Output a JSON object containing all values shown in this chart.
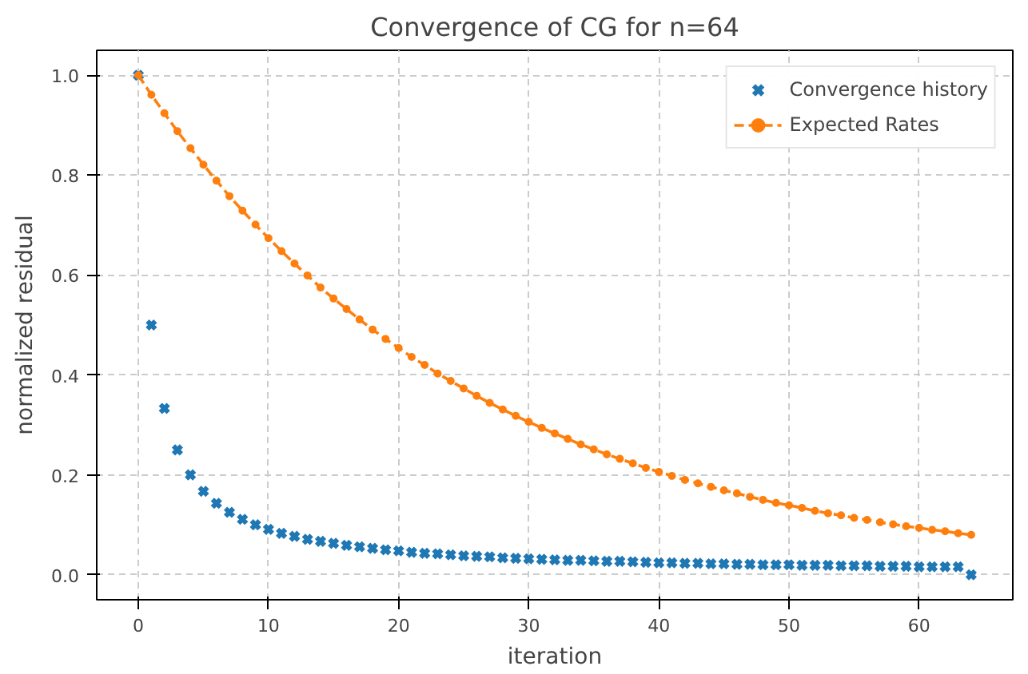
{
  "chart_data": {
    "type": "scatter",
    "title": "Convergence of CG for n=64",
    "xlabel": "iteration",
    "ylabel": "normalized residual",
    "x": [
      0,
      1,
      2,
      3,
      4,
      5,
      6,
      7,
      8,
      9,
      10,
      11,
      12,
      13,
      14,
      15,
      16,
      17,
      18,
      19,
      20,
      21,
      22,
      23,
      24,
      25,
      26,
      27,
      28,
      29,
      30,
      31,
      32,
      33,
      34,
      35,
      36,
      37,
      38,
      39,
      40,
      41,
      42,
      43,
      44,
      45,
      46,
      47,
      48,
      49,
      50,
      51,
      52,
      53,
      54,
      55,
      56,
      57,
      58,
      59,
      60,
      61,
      62,
      63,
      64
    ],
    "series": [
      {
        "name": "Convergence history",
        "marker": "cross",
        "color": "#1f77b4",
        "values": [
          1,
          0.5,
          0.333,
          0.25,
          0.2,
          0.167,
          0.143,
          0.125,
          0.111,
          0.1,
          0.091,
          0.083,
          0.077,
          0.071,
          0.067,
          0.063,
          0.059,
          0.056,
          0.053,
          0.05,
          0.048,
          0.045,
          0.043,
          0.042,
          0.04,
          0.038,
          0.037,
          0.036,
          0.034,
          0.033,
          0.032,
          0.031,
          0.03,
          0.029,
          0.029,
          0.028,
          0.027,
          0.027,
          0.026,
          0.025,
          0.024,
          0.024,
          0.023,
          0.023,
          0.022,
          0.022,
          0.021,
          0.021,
          0.02,
          0.02,
          0.02,
          0.019,
          0.019,
          0.019,
          0.018,
          0.018,
          0.018,
          0.017,
          0.017,
          0.017,
          0.016,
          0.016,
          0.016,
          0.016,
          0
        ]
      },
      {
        "name": "Expected Rates",
        "type": "line",
        "marker": "circle",
        "line_style": "dashed",
        "color": "#ff7f0e",
        "values": [
          1,
          0.961,
          0.924,
          0.888,
          0.854,
          0.821,
          0.789,
          0.758,
          0.729,
          0.701,
          0.674,
          0.648,
          0.623,
          0.599,
          0.575,
          0.553,
          0.532,
          0.511,
          0.491,
          0.472,
          0.454,
          0.436,
          0.42,
          0.403,
          0.388,
          0.373,
          0.358,
          0.344,
          0.331,
          0.318,
          0.306,
          0.294,
          0.283,
          0.272,
          0.261,
          0.251,
          0.241,
          0.232,
          0.223,
          0.214,
          0.206,
          0.198,
          0.19,
          0.183,
          0.176,
          0.169,
          0.163,
          0.156,
          0.15,
          0.144,
          0.139,
          0.134,
          0.128,
          0.123,
          0.119,
          0.114,
          0.11,
          0.105,
          0.101,
          0.097,
          0.094,
          0.09,
          0.087,
          0.083,
          0.08
        ]
      }
    ],
    "xlim": [
      -3.2,
      67.2
    ],
    "ylim": [
      -0.05,
      1.05
    ],
    "xticks": [
      0,
      10,
      20,
      30,
      40,
      50,
      60
    ],
    "yticks": [
      {
        "value": 0,
        "label": "0.0"
      },
      {
        "value": 0.2,
        "label": "0.2"
      },
      {
        "value": 0.4,
        "label": "0.4"
      },
      {
        "value": 0.6,
        "label": "0.6"
      },
      {
        "value": 0.8,
        "label": "0.8"
      },
      {
        "value": 1,
        "label": "1.0"
      }
    ],
    "grid": true,
    "legend": "top right"
  }
}
